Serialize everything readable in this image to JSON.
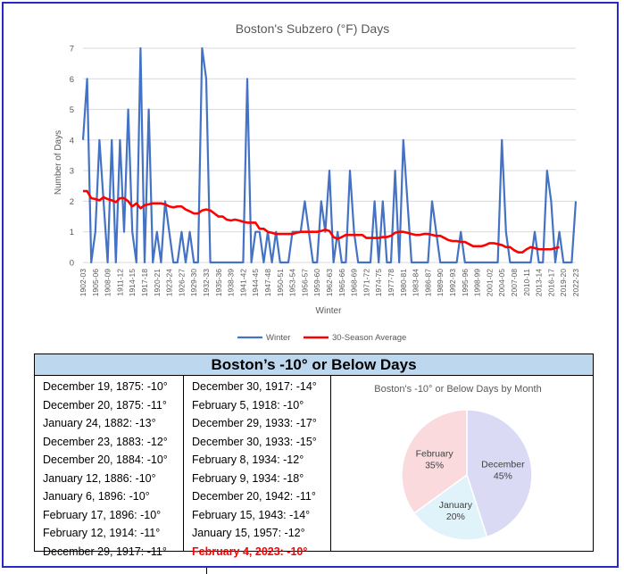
{
  "line_chart": {
    "colors": {
      "winter": "#4472c4",
      "average": "#ff0000",
      "axis_text": "#595959",
      "grid": "#d9d9d9"
    }
  },
  "chart_data": [
    {
      "type": "line",
      "title": "Boston's Subzero (°F) Days",
      "xlabel": "Winter",
      "ylabel": "Number of Days",
      "ylim": [
        0,
        7
      ],
      "grid": true,
      "legend": "bottom",
      "x_tick_labels": [
        "1902-03",
        "1905-06",
        "1908-09",
        "1911-12",
        "1914-15",
        "1917-18",
        "1920-21",
        "1923-24",
        "1926-27",
        "1929-30",
        "1932-33",
        "1935-36",
        "1938-39",
        "1941-42",
        "1944-45",
        "1947-48",
        "1950-51",
        "1953-54",
        "1956-57",
        "1959-60",
        "1962-63",
        "1965-66",
        "1968-69",
        "1971-72",
        "1974-75",
        "1977-78",
        "1980-81",
        "1983-84",
        "1986-87",
        "1989-90",
        "1992-93",
        "1995-96",
        "1998-99",
        "2001-02",
        "2004-05",
        "2007-08",
        "2010-11",
        "2013-14",
        "2016-17",
        "2019-20",
        "2022-23"
      ],
      "y_ticks": [
        0,
        1,
        2,
        3,
        4,
        5,
        6,
        7
      ],
      "series": [
        {
          "name": "Winter",
          "values": [
            4,
            6,
            0,
            1,
            4,
            2,
            0,
            4,
            0,
            4,
            1,
            5,
            1,
            0,
            7,
            0,
            5,
            0,
            1,
            0,
            2,
            1,
            0,
            0,
            1,
            0,
            1,
            0,
            0,
            7,
            6,
            0,
            0,
            0,
            0,
            0,
            0,
            0,
            0,
            0,
            6,
            0,
            1,
            1,
            0,
            1,
            0,
            1,
            0,
            0,
            0,
            1,
            1,
            1,
            2,
            1,
            0,
            0,
            2,
            1,
            3,
            0,
            1,
            0,
            0,
            3,
            1,
            0,
            0,
            0,
            0,
            2,
            0,
            2,
            0,
            0,
            3,
            0,
            4,
            2,
            0,
            0,
            0,
            0,
            0,
            2,
            1,
            0,
            0,
            0,
            0,
            0,
            1,
            0,
            0,
            0,
            0,
            0,
            0,
            0,
            0,
            0,
            4,
            1,
            0,
            0,
            0,
            0,
            0,
            0,
            1,
            0,
            0,
            3,
            2,
            0,
            1,
            0,
            0,
            0,
            2
          ]
        },
        {
          "name": "30-Season Average",
          "values": [
            2.33,
            2.33,
            2.1,
            2.07,
            2.03,
            2.13,
            2.07,
            2.03,
            1.97,
            2.1,
            2.1,
            2.0,
            1.83,
            1.93,
            1.77,
            1.87,
            1.9,
            1.93,
            1.93,
            1.93,
            1.9,
            1.83,
            1.8,
            1.83,
            1.83,
            1.73,
            1.67,
            1.6,
            1.6,
            1.7,
            1.73,
            1.7,
            1.6,
            1.5,
            1.5,
            1.4,
            1.37,
            1.4,
            1.37,
            1.33,
            1.3,
            1.3,
            1.3,
            1.1,
            1.1,
            1.0,
            0.97,
            0.93,
            0.93,
            0.93,
            0.93,
            0.93,
            0.97,
            1.0,
            1.0,
            1.0,
            1.0,
            1.0,
            1.03,
            1.07,
            1.03,
            0.83,
            0.77,
            0.83,
            0.9,
            0.9,
            0.9,
            0.9,
            0.9,
            0.8,
            0.8,
            0.8,
            0.8,
            0.83,
            0.83,
            0.87,
            0.97,
            1.0,
            1.0,
            0.97,
            0.93,
            0.9,
            0.9,
            0.93,
            0.93,
            0.9,
            0.87,
            0.87,
            0.8,
            0.73,
            0.7,
            0.7,
            0.67,
            0.67,
            0.6,
            0.53,
            0.53,
            0.53,
            0.57,
            0.63,
            0.63,
            0.6,
            0.57,
            0.5,
            0.5,
            0.4,
            0.33,
            0.33,
            0.43,
            0.5,
            0.47,
            0.43,
            0.43,
            0.43,
            0.43,
            0.47,
            0.5
          ]
        }
      ]
    },
    {
      "type": "pie",
      "title": "Boston's -10° or Below Days by Month",
      "slices": [
        {
          "label": "December",
          "value": 45,
          "display": "45%",
          "color": "#dadaf5"
        },
        {
          "label": "January",
          "value": 20,
          "display": "20%",
          "color": "#e0f2fa"
        },
        {
          "label": "February",
          "value": 35,
          "display": "35%",
          "color": "#fadadd"
        }
      ]
    }
  ],
  "table": {
    "title": "Boston’s -10° or Below Days",
    "column1": [
      "December 19, 1875: -10°",
      "December 20, 1875: -11°",
      "January 24, 1882: -13°",
      "December 23, 1883: -12°",
      "December 20, 1884: -10°",
      "January 12, 1886: -10°",
      "January 6, 1896: -10°",
      "February 17, 1896: -10°",
      "February 12, 1914: -11°",
      "December 29, 1917: -11°"
    ],
    "column2": [
      "December 30, 1917: -14°",
      "February 5, 1918: -10°",
      "December 29, 1933: -17°",
      "December 30, 1933: -15°",
      "February 8, 1934: -12°",
      "February 9, 1934: -18°",
      "December 20, 1942: -11°",
      "February 15, 1943: -14°",
      "January 15, 1957: -12°",
      "February 4, 2023: -10°"
    ],
    "highlight_color": "#ff0000"
  }
}
